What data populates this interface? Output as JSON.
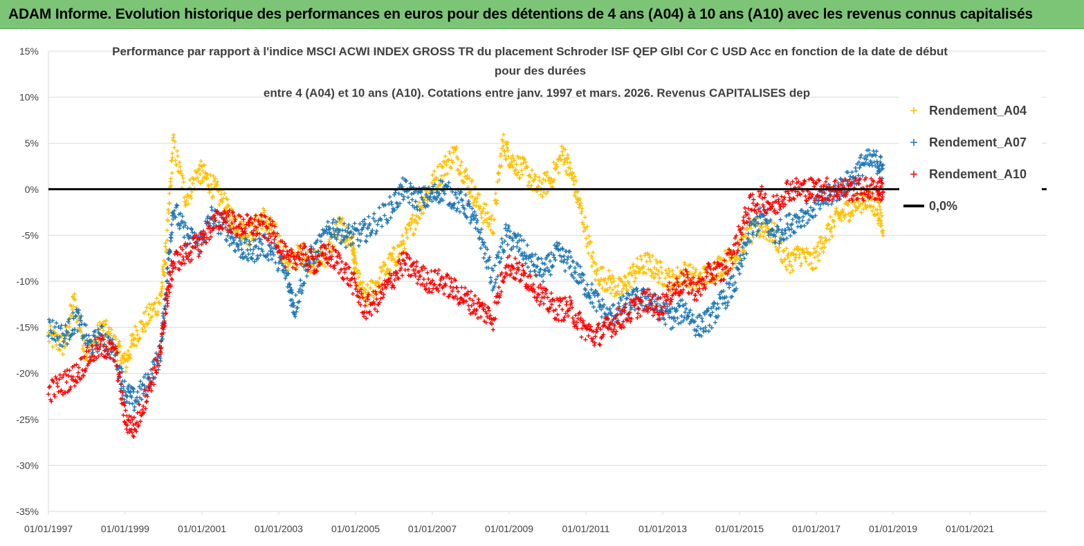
{
  "header": {
    "banner_title": "ADAM Informe. Evolution historique des performances en euros pour des détentions de 4 ans (A04) à 10 ans (A10) avec les revenus connus capitalisés",
    "banner_color": "#7cc576"
  },
  "chart_data": {
    "type": "scatter",
    "title_lines": [
      "Performance par rapport à l'indice MSCI ACWI INDEX GROSS TR  du placement Schroder ISF QEP Glbl Cor C USD Acc en fonction de la date de début",
      "pour des durées",
      "entre 4 (A04) et 10 ans (A10). Cotations entre janv. 1997 et mars. 2026. Revenus CAPITALISES dep"
    ],
    "xlabel": "",
    "ylabel": "",
    "x_tick_labels": [
      "01/01/1997",
      "01/01/1999",
      "01/01/2001",
      "01/01/2003",
      "01/01/2005",
      "01/01/2007",
      "01/01/2009",
      "01/01/2011",
      "01/01/2013",
      "01/01/2015",
      "01/01/2017",
      "01/01/2019",
      "01/01/2021"
    ],
    "y_tick_labels": [
      "15%",
      "10%",
      "5%",
      "0%",
      "-5%",
      "-10%",
      "-15%",
      "-20%",
      "-25%",
      "-30%",
      "-35%"
    ],
    "xlim": [
      "1997-01-01",
      "2023-01-01"
    ],
    "ylim": [
      -35,
      15
    ],
    "grid": "horizontal",
    "legend_position": "right",
    "reference_line": {
      "name": "0,0%",
      "value": 0,
      "color": "#000000"
    },
    "series": [
      {
        "name": "Rendement_A04",
        "color": "#ffc000",
        "marker": "+",
        "points": [
          [
            "1997-01-01",
            -16
          ],
          [
            "1997-06-01",
            -17
          ],
          [
            "1997-09-01",
            -12
          ],
          [
            "1998-01-01",
            -18
          ],
          [
            "1998-06-01",
            -15
          ],
          [
            "1998-10-01",
            -17
          ],
          [
            "1999-01-01",
            -19
          ],
          [
            "1999-04-01",
            -16
          ],
          [
            "1999-08-01",
            -14
          ],
          [
            "1999-12-01",
            -12
          ],
          [
            "2000-02-01",
            -6
          ],
          [
            "2000-04-01",
            5
          ],
          [
            "2000-08-01",
            -1
          ],
          [
            "2000-12-01",
            2
          ],
          [
            "2001-03-01",
            1
          ],
          [
            "2001-07-01",
            -1
          ],
          [
            "2001-10-01",
            -3
          ],
          [
            "2002-01-01",
            -4
          ],
          [
            "2002-04-01",
            -5
          ],
          [
            "2002-08-01",
            -3
          ],
          [
            "2002-12-01",
            -5
          ],
          [
            "2003-04-01",
            -8
          ],
          [
            "2003-08-01",
            -7
          ],
          [
            "2003-12-01",
            -8
          ],
          [
            "2004-04-01",
            -7
          ],
          [
            "2004-08-01",
            -4
          ],
          [
            "2004-12-01",
            -6
          ],
          [
            "2005-01-01",
            -9
          ],
          [
            "2005-04-01",
            -12
          ],
          [
            "2005-08-01",
            -10
          ],
          [
            "2005-12-01",
            -8
          ],
          [
            "2006-04-01",
            -6
          ],
          [
            "2006-08-01",
            -3
          ],
          [
            "2006-12-01",
            0
          ],
          [
            "2007-04-01",
            2
          ],
          [
            "2007-08-01",
            4
          ],
          [
            "2007-12-01",
            1
          ],
          [
            "2008-04-01",
            -2
          ],
          [
            "2008-08-01",
            -4
          ],
          [
            "2008-11-01",
            5
          ],
          [
            "2009-02-01",
            3
          ],
          [
            "2009-06-01",
            2
          ],
          [
            "2009-10-01",
            0
          ],
          [
            "2010-02-01",
            1
          ],
          [
            "2010-06-01",
            4
          ],
          [
            "2010-09-01",
            1
          ],
          [
            "2010-12-01",
            -3
          ],
          [
            "2011-04-01",
            -9
          ],
          [
            "2011-08-01",
            -10
          ],
          [
            "2011-12-01",
            -11
          ],
          [
            "2012-04-01",
            -9
          ],
          [
            "2012-08-01",
            -8
          ],
          [
            "2012-12-01",
            -9
          ],
          [
            "2013-04-01",
            -10
          ],
          [
            "2013-08-01",
            -9
          ],
          [
            "2013-12-01",
            -10
          ],
          [
            "2014-04-01",
            -9
          ],
          [
            "2014-08-01",
            -8
          ],
          [
            "2014-12-01",
            -7
          ],
          [
            "2015-04-01",
            -5
          ],
          [
            "2015-08-01",
            -4
          ],
          [
            "2015-12-01",
            -5
          ],
          [
            "2016-04-01",
            -8
          ],
          [
            "2016-08-01",
            -7
          ],
          [
            "2016-12-01",
            -8
          ],
          [
            "2017-04-01",
            -5
          ],
          [
            "2017-08-01",
            -3
          ],
          [
            "2017-12-01",
            -2
          ],
          [
            "2018-04-01",
            -1
          ],
          [
            "2018-08-01",
            -2
          ],
          [
            "2018-10-01",
            -4
          ]
        ]
      },
      {
        "name": "Rendement_A07",
        "color": "#1f77b4",
        "marker": "+",
        "points": [
          [
            "1997-01-01",
            -15
          ],
          [
            "1997-06-01",
            -16
          ],
          [
            "1997-10-01",
            -14
          ],
          [
            "1998-02-01",
            -17
          ],
          [
            "1998-06-01",
            -16
          ],
          [
            "1998-10-01",
            -18
          ],
          [
            "1999-01-01",
            -22
          ],
          [
            "1999-04-01",
            -23
          ],
          [
            "1999-08-01",
            -21
          ],
          [
            "1999-12-01",
            -18
          ],
          [
            "2000-02-01",
            -10
          ],
          [
            "2000-04-01",
            -2
          ],
          [
            "2000-08-01",
            -5
          ],
          [
            "2000-12-01",
            -6
          ],
          [
            "2001-04-01",
            -3
          ],
          [
            "2001-08-01",
            -4
          ],
          [
            "2001-12-01",
            -6
          ],
          [
            "2002-04-01",
            -7
          ],
          [
            "2002-08-01",
            -6
          ],
          [
            "2002-12-01",
            -7
          ],
          [
            "2003-04-01",
            -10
          ],
          [
            "2003-06-01",
            -13
          ],
          [
            "2003-10-01",
            -8
          ],
          [
            "2004-02-01",
            -6
          ],
          [
            "2004-06-01",
            -4
          ],
          [
            "2004-10-01",
            -5
          ],
          [
            "2005-02-01",
            -5
          ],
          [
            "2005-06-01",
            -4
          ],
          [
            "2005-12-01",
            -2
          ],
          [
            "2006-04-01",
            0
          ],
          [
            "2006-08-01",
            -1
          ],
          [
            "2006-12-01",
            -1
          ],
          [
            "2007-04-01",
            0
          ],
          [
            "2007-08-01",
            -1
          ],
          [
            "2007-12-01",
            -2
          ],
          [
            "2008-04-01",
            -5
          ],
          [
            "2008-08-01",
            -10
          ],
          [
            "2008-12-01",
            -5
          ],
          [
            "2009-04-01",
            -6
          ],
          [
            "2009-08-01",
            -8
          ],
          [
            "2009-12-01",
            -9
          ],
          [
            "2010-04-01",
            -7
          ],
          [
            "2010-08-01",
            -8
          ],
          [
            "2010-12-01",
            -10
          ],
          [
            "2011-04-01",
            -12
          ],
          [
            "2011-08-01",
            -14
          ],
          [
            "2011-12-01",
            -13
          ],
          [
            "2012-04-01",
            -12
          ],
          [
            "2012-08-01",
            -12
          ],
          [
            "2012-12-01",
            -13
          ],
          [
            "2013-04-01",
            -14
          ],
          [
            "2013-08-01",
            -13
          ],
          [
            "2013-12-01",
            -15
          ],
          [
            "2014-04-01",
            -14
          ],
          [
            "2014-08-01",
            -12
          ],
          [
            "2014-12-01",
            -10
          ],
          [
            "2015-04-01",
            -5
          ],
          [
            "2015-08-01",
            -3
          ],
          [
            "2015-12-01",
            -5
          ],
          [
            "2016-04-01",
            -4
          ],
          [
            "2016-08-01",
            -3
          ],
          [
            "2016-12-01",
            -2
          ],
          [
            "2017-04-01",
            -1
          ],
          [
            "2017-08-01",
            0
          ],
          [
            "2017-12-01",
            1
          ],
          [
            "2018-04-01",
            3
          ],
          [
            "2018-08-01",
            3
          ],
          [
            "2018-10-01",
            2
          ]
        ]
      },
      {
        "name": "Rendement_A10",
        "color": "#ff0000",
        "marker": "+",
        "points": [
          [
            "1997-01-01",
            -22
          ],
          [
            "1997-06-01",
            -21
          ],
          [
            "1997-10-01",
            -20
          ],
          [
            "1998-02-01",
            -18
          ],
          [
            "1998-06-01",
            -17
          ],
          [
            "1998-10-01",
            -18
          ],
          [
            "1999-01-01",
            -25
          ],
          [
            "1999-04-01",
            -26
          ],
          [
            "1999-08-01",
            -22
          ],
          [
            "1999-12-01",
            -18
          ],
          [
            "2000-02-01",
            -12
          ],
          [
            "2000-04-01",
            -8
          ],
          [
            "2000-08-01",
            -7
          ],
          [
            "2000-12-01",
            -6
          ],
          [
            "2001-04-01",
            -4
          ],
          [
            "2001-08-01",
            -3
          ],
          [
            "2001-12-01",
            -4
          ],
          [
            "2002-04-01",
            -4
          ],
          [
            "2002-08-01",
            -4
          ],
          [
            "2002-12-01",
            -5
          ],
          [
            "2003-04-01",
            -8
          ],
          [
            "2003-08-01",
            -7
          ],
          [
            "2003-12-01",
            -8
          ],
          [
            "2004-04-01",
            -7
          ],
          [
            "2004-08-01",
            -8
          ],
          [
            "2004-12-01",
            -10
          ],
          [
            "2005-04-01",
            -13
          ],
          [
            "2005-08-01",
            -12
          ],
          [
            "2005-12-01",
            -10
          ],
          [
            "2006-04-01",
            -8
          ],
          [
            "2006-08-01",
            -9
          ],
          [
            "2006-12-01",
            -10
          ],
          [
            "2007-04-01",
            -10
          ],
          [
            "2007-08-01",
            -11
          ],
          [
            "2007-12-01",
            -12
          ],
          [
            "2008-04-01",
            -13
          ],
          [
            "2008-08-01",
            -14
          ],
          [
            "2008-12-01",
            -8
          ],
          [
            "2009-04-01",
            -9
          ],
          [
            "2009-08-01",
            -10
          ],
          [
            "2009-12-01",
            -12
          ],
          [
            "2010-04-01",
            -13
          ],
          [
            "2010-08-01",
            -13
          ],
          [
            "2010-12-01",
            -15
          ],
          [
            "2011-04-01",
            -16
          ],
          [
            "2011-08-01",
            -15
          ],
          [
            "2011-12-01",
            -14
          ],
          [
            "2012-04-01",
            -13
          ],
          [
            "2012-08-01",
            -12
          ],
          [
            "2012-12-01",
            -13
          ],
          [
            "2013-04-01",
            -11
          ],
          [
            "2013-08-01",
            -10
          ],
          [
            "2013-12-01",
            -11
          ],
          [
            "2014-04-01",
            -9
          ],
          [
            "2014-08-01",
            -9
          ],
          [
            "2014-12-01",
            -6
          ],
          [
            "2015-04-01",
            -2
          ],
          [
            "2015-08-01",
            -1
          ],
          [
            "2015-12-01",
            -2
          ],
          [
            "2016-04-01",
            0
          ],
          [
            "2016-08-01",
            0
          ],
          [
            "2016-12-01",
            0
          ],
          [
            "2017-04-01",
            0
          ],
          [
            "2017-08-01",
            0
          ],
          [
            "2017-12-01",
            0
          ],
          [
            "2018-04-01",
            0
          ],
          [
            "2018-08-01",
            0
          ],
          [
            "2018-10-01",
            0
          ]
        ]
      }
    ]
  }
}
